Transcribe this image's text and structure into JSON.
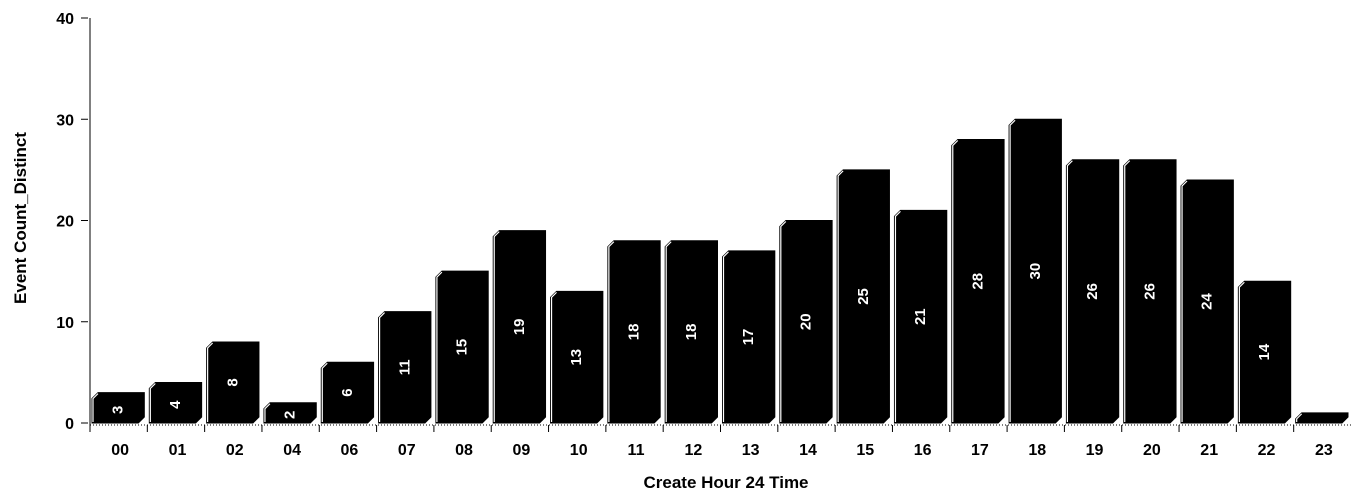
{
  "chart_data": {
    "type": "bar",
    "title": "",
    "xlabel": "Create Hour 24 Time",
    "ylabel": "Event Count_Distinct",
    "categories": [
      "00",
      "01",
      "02",
      "04",
      "06",
      "07",
      "08",
      "09",
      "10",
      "11",
      "12",
      "13",
      "14",
      "15",
      "16",
      "17",
      "18",
      "19",
      "20",
      "21",
      "22",
      "23"
    ],
    "values": [
      3,
      4,
      8,
      2,
      6,
      11,
      15,
      19,
      13,
      18,
      18,
      17,
      20,
      25,
      21,
      28,
      30,
      26,
      26,
      24,
      14,
      1
    ],
    "data_labels": [
      "3",
      "4",
      "8",
      "2",
      "6",
      "11",
      "15",
      "19",
      "13",
      "18",
      "18",
      "17",
      "20",
      "25",
      "21",
      "28",
      "30",
      "26",
      "26",
      "24",
      "14",
      ""
    ],
    "ylim": [
      0,
      40
    ],
    "yticks": [
      0,
      10,
      20,
      30,
      40
    ],
    "ytick_labels": [
      "0",
      "10",
      "20",
      "30",
      "40"
    ],
    "grid": false,
    "legend": "none",
    "bar_color": "#000000",
    "label_color": "#ffffff"
  }
}
